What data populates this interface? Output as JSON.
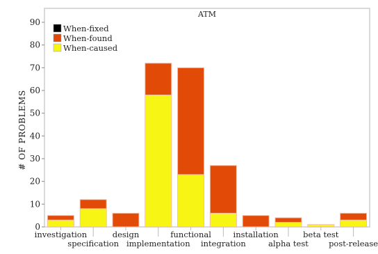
{
  "chart_data": {
    "type": "bar",
    "stacked": true,
    "title": "ATM",
    "ylabel": "# OF PROBLEMS",
    "xlabel": "",
    "ylim": [
      0,
      90
    ],
    "yticks": [
      0,
      10,
      20,
      30,
      40,
      50,
      60,
      70,
      80,
      90
    ],
    "categories": [
      "investigation",
      "specification",
      "design",
      "implementation",
      "functional",
      "integration",
      "installation",
      "alpha test",
      "beta test",
      "post-release"
    ],
    "series": [
      {
        "name": "When-fixed",
        "color": "#000000",
        "values": [
          0,
          0,
          0,
          0,
          0,
          0,
          0,
          0,
          0,
          0
        ]
      },
      {
        "name": "When-found",
        "color": "#e24a08",
        "values": [
          2,
          4,
          6,
          14,
          47,
          21,
          5,
          2,
          0,
          3
        ]
      },
      {
        "name": "When-caused",
        "color": "#f7f514",
        "values": [
          3,
          8,
          0,
          58,
          23,
          6,
          0,
          2,
          1,
          3
        ]
      }
    ],
    "legend_position": "top-left",
    "grid": false
  }
}
